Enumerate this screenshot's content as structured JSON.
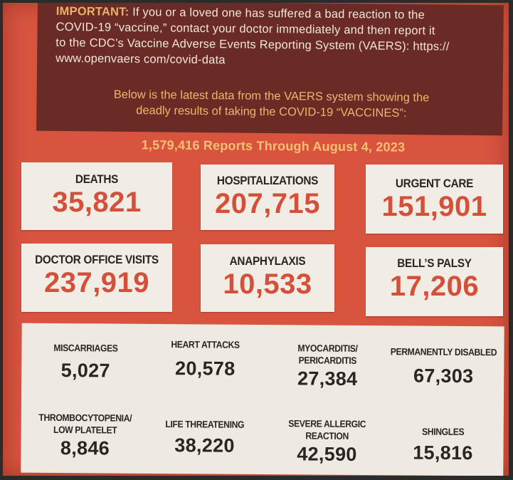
{
  "notice": {
    "important_label": "IMPORTANT:",
    "line1": "If you or a loved one has suffered a bad reaction to the",
    "line2": "COVID-19 “vaccine,” contact your doctor immediately and then report it",
    "line3": "to the CDC’s Vaccine Adverse Events Reporting System (VAERS): https://",
    "line4": "www.openvaers com/covid-data",
    "sub_line1": "Below is the latest data from the VAERS system showing the",
    "sub_line2": "deadly results of taking the COVID-19 “VACCINES”:"
  },
  "reports_line": "1,579,416 Reports Through August 4, 2023",
  "major_stats": [
    {
      "label": "DEATHS",
      "value": "35,821"
    },
    {
      "label": "HOSPITALIZATIONS",
      "value": "207,715"
    },
    {
      "label": "URGENT CARE",
      "value": "151,901"
    },
    {
      "label": "DOCTOR OFFICE VISITS",
      "value": "237,919"
    },
    {
      "label": "ANAPHYLAXIS",
      "value": "10,533"
    },
    {
      "label": "BELL’S PALSY",
      "value": "17,206"
    }
  ],
  "minor_stats": [
    {
      "label1": "MISCARRIAGES",
      "label2": "",
      "value": "5,027"
    },
    {
      "label1": "HEART ATTACKS",
      "label2": "",
      "value": "20,578"
    },
    {
      "label1": "MYOCARDITIS/",
      "label2": "PERICARDITIS",
      "value": "27,384"
    },
    {
      "label1": "PERMANENTLY DISABLED",
      "label2": "",
      "value": "67,303"
    },
    {
      "label1": "THROMBOCYTOPENIA/",
      "label2": "LOW PLATELET",
      "value": "8,846"
    },
    {
      "label1": "LIFE THREATENING",
      "label2": "",
      "value": "38,220"
    },
    {
      "label1": "SEVERE ALLERGIC",
      "label2": "REACTION",
      "value": "42,590"
    },
    {
      "label1": "SHINGLES",
      "label2": "",
      "value": "15,816"
    }
  ]
}
